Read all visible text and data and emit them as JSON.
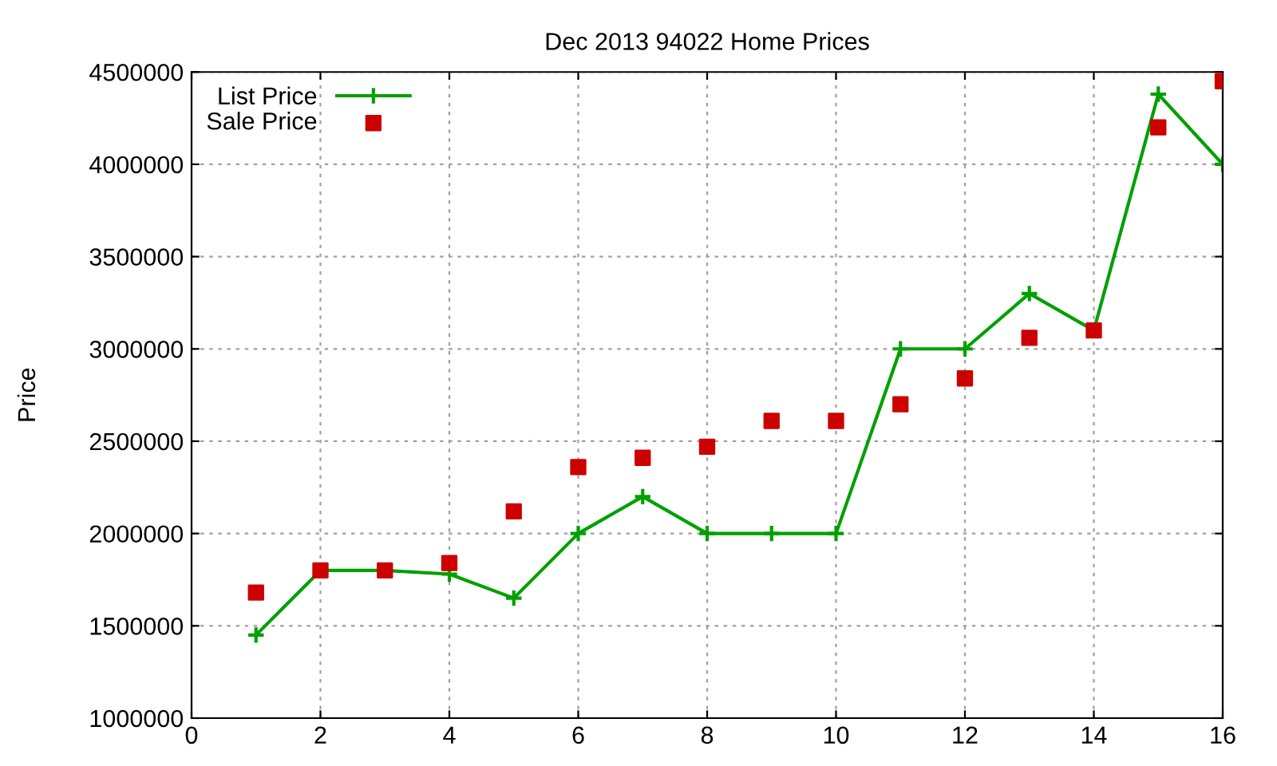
{
  "chart_data": {
    "type": "line",
    "title": "Dec 2013 94022 Home Prices",
    "ylabel": "Price",
    "x": [
      1,
      2,
      3,
      4,
      5,
      6,
      7,
      8,
      9,
      10,
      11,
      12,
      13,
      14,
      15,
      16
    ],
    "series": [
      {
        "name": "List Price",
        "color": "#00a000",
        "marker": "cross",
        "values": [
          1450000,
          1800000,
          1800000,
          1780000,
          1650000,
          2000000,
          2200000,
          2000000,
          2000000,
          2000000,
          3000000,
          3000000,
          3300000,
          3100000,
          4380000,
          4000000
        ]
      },
      {
        "name": "Sale Price",
        "type": "scatter",
        "color": "#cc0000",
        "marker": "square",
        "values": [
          1680000,
          1800000,
          1800000,
          1840000,
          2120000,
          2360000,
          2410000,
          2470000,
          2610000,
          2610000,
          2700000,
          2840000,
          3060000,
          3100000,
          4200000,
          4450000
        ]
      }
    ],
    "xlim": [
      0,
      16
    ],
    "xticks": [
      0,
      2,
      4,
      6,
      8,
      10,
      12,
      14,
      16
    ],
    "ylim": [
      1000000,
      4500000
    ],
    "yticks": [
      1000000,
      1500000,
      2000000,
      2500000,
      3000000,
      3500000,
      4000000,
      4500000
    ],
    "grid": true,
    "legend": "top left"
  }
}
